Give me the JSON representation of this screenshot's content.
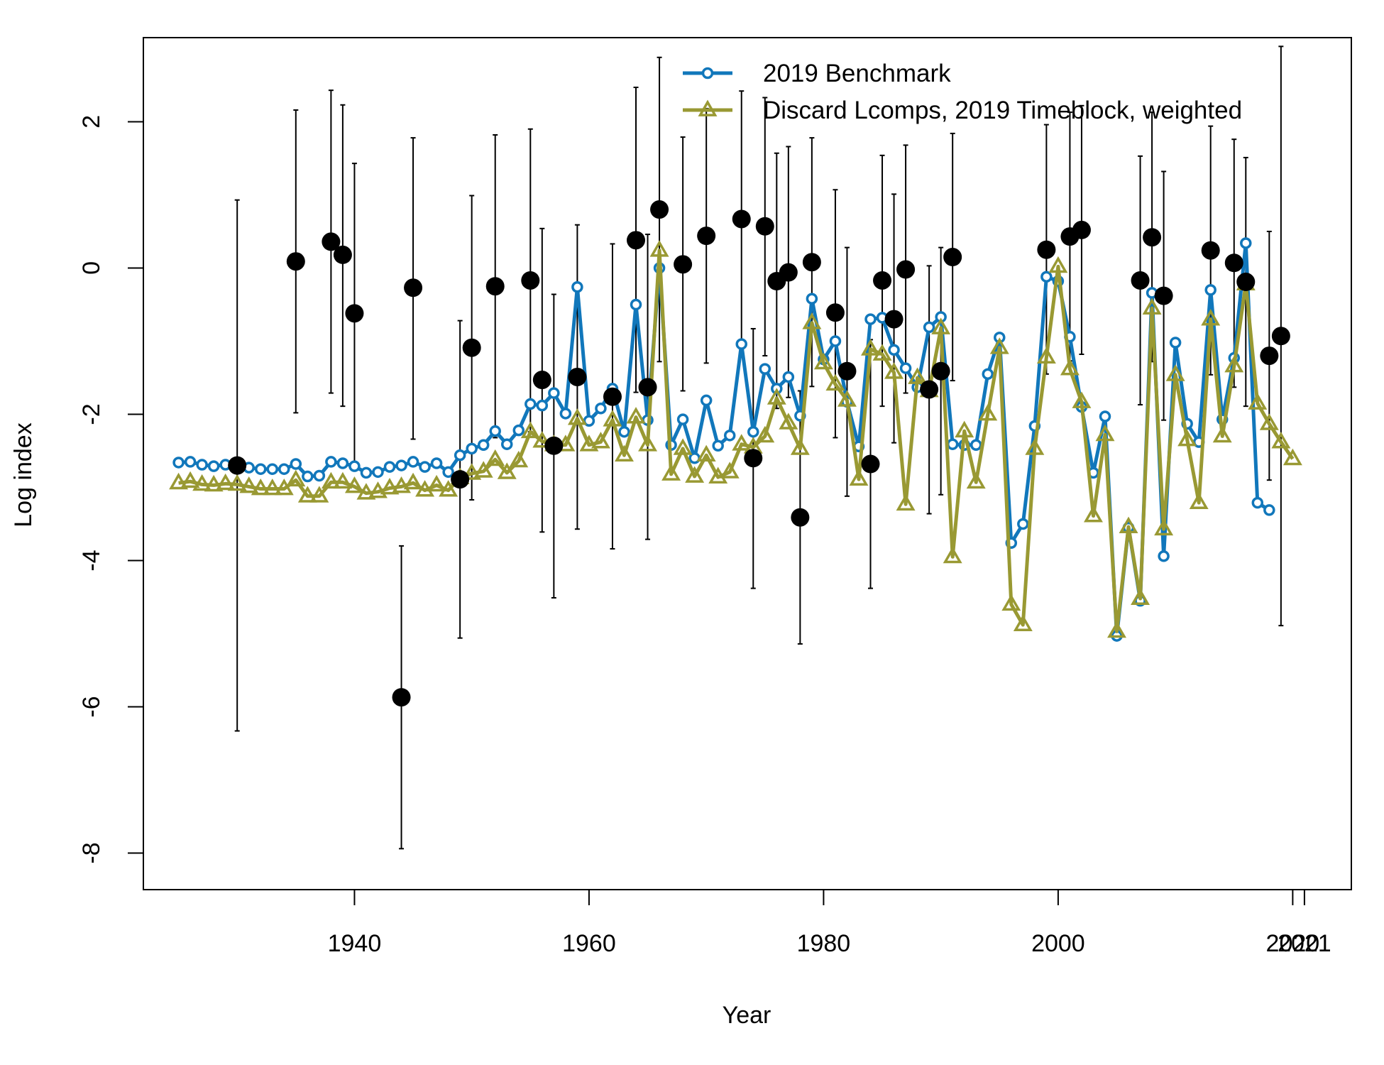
{
  "chart_data": {
    "type": "line",
    "xlabel": "Year",
    "ylabel": "Log index",
    "xlim": [
      1922,
      2025
    ],
    "ylim": [
      -8.5,
      3.15
    ],
    "x_ticks": [
      1940,
      1960,
      1980,
      2000,
      2020,
      2021
    ],
    "x_tick_labels": [
      "1940",
      "1960",
      "1980",
      "2000",
      "2020",
      "2021"
    ],
    "y_ticks": [
      2,
      0,
      -2,
      -4,
      -6,
      -8
    ],
    "y_tick_labels": [
      "2",
      "0",
      "-2",
      "-4",
      "-6",
      "-8"
    ],
    "legend_position": "top-right",
    "legend": [
      "2019 Benchmark",
      "Discard Lcomps, 2019 Timeblock, weighted"
    ],
    "series": [
      {
        "name": "2019 Benchmark",
        "color": "#1177BB",
        "marker": "circle",
        "x": [
          1925,
          1926,
          1927,
          1928,
          1929,
          1930,
          1931,
          1932,
          1933,
          1934,
          1935,
          1936,
          1937,
          1938,
          1939,
          1940,
          1941,
          1942,
          1943,
          1944,
          1945,
          1946,
          1947,
          1948,
          1949,
          1950,
          1951,
          1952,
          1953,
          1954,
          1955,
          1956,
          1957,
          1958,
          1959,
          1960,
          1961,
          1962,
          1963,
          1964,
          1965,
          1966,
          1967,
          1968,
          1969,
          1970,
          1971,
          1972,
          1973,
          1974,
          1975,
          1976,
          1977,
          1978,
          1979,
          1980,
          1981,
          1982,
          1983,
          1984,
          1985,
          1986,
          1987,
          1988,
          1989,
          1990,
          1991,
          1992,
          1993,
          1994,
          1995,
          1996,
          1997,
          1998,
          1999,
          2000,
          2001,
          2002,
          2003,
          2004,
          2005,
          2006,
          2007,
          2008,
          2009,
          2010,
          2011,
          2012,
          2013,
          2014,
          2015,
          2016,
          2017,
          2018
        ],
        "y": [
          -2.66,
          -2.65,
          -2.69,
          -2.71,
          -2.69,
          -2.7,
          -2.73,
          -2.75,
          -2.75,
          -2.75,
          -2.68,
          -2.85,
          -2.84,
          -2.65,
          -2.67,
          -2.71,
          -2.8,
          -2.79,
          -2.72,
          -2.7,
          -2.65,
          -2.72,
          -2.67,
          -2.79,
          -2.56,
          -2.47,
          -2.42,
          -2.23,
          -2.41,
          -2.22,
          -1.86,
          -1.88,
          -1.71,
          -1.99,
          -0.26,
          -2.09,
          -1.92,
          -1.65,
          -2.24,
          -0.5,
          -2.08,
          0.0,
          -2.42,
          -2.07,
          -2.6,
          -1.81,
          -2.43,
          -2.29,
          -1.04,
          -2.24,
          -1.38,
          -1.65,
          -1.49,
          -2.02,
          -0.42,
          -1.25,
          -1.0,
          -1.83,
          -2.44,
          -0.7,
          -0.68,
          -1.12,
          -1.37,
          -1.63,
          -0.81,
          -0.67,
          -2.41,
          -2.42,
          -2.42,
          -1.45,
          -0.95,
          -3.76,
          -3.5,
          -2.16,
          -0.12,
          -0.18,
          -0.94,
          -1.9,
          -2.8,
          -2.03,
          -5.03,
          -3.55,
          -4.55,
          -0.34,
          -3.94,
          -1.02,
          -2.13,
          -2.38,
          -0.3,
          -2.07,
          -1.23,
          0.34,
          -3.21,
          -3.31
        ]
      },
      {
        "name": "Discard Lcomps, 2019 Timeblock, weighted",
        "color": "#999933",
        "marker": "triangle",
        "x": [
          1925,
          1926,
          1927,
          1928,
          1929,
          1930,
          1931,
          1932,
          1933,
          1934,
          1935,
          1936,
          1937,
          1938,
          1939,
          1940,
          1941,
          1942,
          1943,
          1944,
          1945,
          1946,
          1947,
          1948,
          1949,
          1950,
          1951,
          1952,
          1953,
          1954,
          1955,
          1956,
          1957,
          1958,
          1959,
          1960,
          1961,
          1962,
          1963,
          1964,
          1965,
          1966,
          1967,
          1968,
          1969,
          1970,
          1971,
          1972,
          1973,
          1974,
          1975,
          1976,
          1977,
          1978,
          1979,
          1980,
          1981,
          1982,
          1983,
          1984,
          1985,
          1986,
          1987,
          1988,
          1989,
          1990,
          1991,
          1992,
          1993,
          1994,
          1995,
          1996,
          1997,
          1998,
          1999,
          2000,
          2001,
          2002,
          2003,
          2004,
          2005,
          2006,
          2007,
          2008,
          2009,
          2010,
          2011,
          2012,
          2013,
          2014,
          2015,
          2016,
          2017,
          2018,
          2019,
          2020
        ],
        "y": [
          -2.94,
          -2.92,
          -2.96,
          -2.97,
          -2.95,
          -2.96,
          -2.99,
          -3.02,
          -3.02,
          -3.02,
          -2.9,
          -3.12,
          -3.12,
          -2.93,
          -2.93,
          -2.99,
          -3.08,
          -3.06,
          -3.01,
          -2.99,
          -2.94,
          -3.04,
          -2.97,
          -3.04,
          -2.87,
          -2.81,
          -2.78,
          -2.62,
          -2.8,
          -2.64,
          -2.24,
          -2.37,
          -2.42,
          -2.42,
          -2.06,
          -2.42,
          -2.38,
          -2.08,
          -2.56,
          -2.04,
          -2.42,
          0.24,
          -2.82,
          -2.47,
          -2.85,
          -2.56,
          -2.86,
          -2.79,
          -2.41,
          -2.45,
          -2.3,
          -1.78,
          -2.12,
          -2.47,
          -0.75,
          -1.3,
          -1.59,
          -1.81,
          -2.89,
          -1.11,
          -1.18,
          -1.43,
          -3.23,
          -1.5,
          -1.68,
          -0.82,
          -3.95,
          -2.23,
          -2.93,
          -2.0,
          -1.09,
          -4.6,
          -4.88,
          -2.47,
          -1.22,
          0.02,
          -1.38,
          -1.83,
          -3.39,
          -2.28,
          -4.97,
          -3.54,
          -4.52,
          -0.55,
          -3.57,
          -1.46,
          -2.35,
          -3.21,
          -0.7,
          -2.3,
          -1.34,
          -0.22,
          -1.85,
          -2.13,
          -2.38,
          -2.61
        ]
      },
      {
        "name": "",
        "color": "#000000",
        "marker": "filled-circle",
        "kind": "observed-with-error-bars",
        "x": [
          1930,
          1935,
          1938,
          1939,
          1940,
          1944,
          1945,
          1949,
          1950,
          1952,
          1955,
          1956,
          1957,
          1959,
          1962,
          1964,
          1965,
          1966,
          1968,
          1970,
          1973,
          1974,
          1975,
          1976,
          1977,
          1978,
          1979,
          1981,
          1982,
          1984,
          1985,
          1986,
          1987,
          1989,
          1990,
          1991,
          1999,
          2001,
          2002,
          2007,
          2008,
          2009,
          2013,
          2015,
          2016,
          2018,
          2019
        ],
        "y": [
          -2.7,
          0.09,
          0.36,
          0.18,
          -0.62,
          -5.87,
          -0.27,
          -2.89,
          -1.09,
          -0.25,
          -0.17,
          -1.53,
          -2.43,
          -1.49,
          -1.76,
          0.38,
          -1.63,
          0.8,
          0.05,
          0.44,
          0.67,
          -2.6,
          0.57,
          -0.18,
          -0.06,
          -3.41,
          0.08,
          -0.61,
          -1.41,
          -2.68,
          -0.17,
          -0.7,
          -0.02,
          -1.66,
          -1.41,
          0.15,
          0.25,
          0.43,
          0.52,
          -0.17,
          0.42,
          -0.38,
          0.24,
          0.07,
          -0.19,
          -1.2,
          -0.93
        ],
        "lower": [
          -6.33,
          -1.98,
          -1.71,
          -1.89,
          -2.67,
          -7.94,
          -2.34,
          -5.06,
          -3.17,
          -2.32,
          -2.24,
          -3.61,
          -4.51,
          -3.57,
          -3.84,
          -1.7,
          -3.71,
          -1.28,
          -1.68,
          -1.3,
          -1.07,
          -4.38,
          -1.2,
          -1.92,
          -1.77,
          -5.14,
          -1.62,
          -2.32,
          -3.12,
          -4.38,
          -1.89,
          -2.39,
          -1.71,
          -3.36,
          -3.1,
          -1.54,
          -1.45,
          -1.27,
          -1.18,
          -1.87,
          -1.28,
          -2.08,
          -1.46,
          -1.63,
          -1.89,
          -2.9,
          -4.89
        ],
        "upper": [
          0.93,
          2.16,
          2.43,
          2.23,
          1.43,
          -3.8,
          1.78,
          -0.72,
          0.99,
          1.82,
          1.9,
          0.54,
          -0.36,
          0.59,
          0.33,
          2.47,
          0.46,
          2.88,
          1.79,
          2.18,
          2.42,
          -0.83,
          2.33,
          1.57,
          1.66,
          -1.68,
          1.78,
          1.07,
          0.28,
          -0.98,
          1.54,
          1.01,
          1.68,
          0.03,
          0.28,
          1.84,
          1.96,
          2.13,
          2.22,
          1.53,
          2.13,
          1.32,
          1.94,
          1.76,
          1.51,
          0.5,
          3.03
        ]
      }
    ]
  }
}
